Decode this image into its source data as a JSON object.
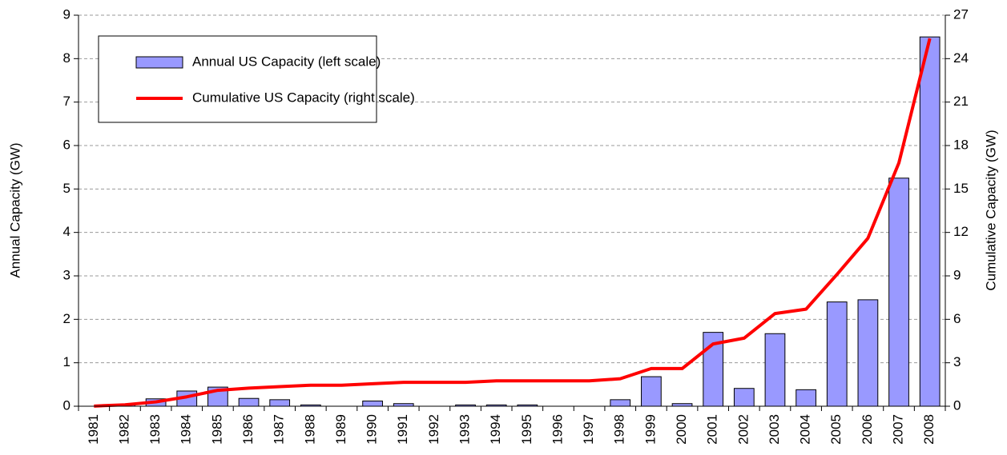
{
  "chart_data": {
    "type": "bar_line",
    "categories": [
      "1981",
      "1982",
      "1983",
      "1984",
      "1985",
      "1986",
      "1987",
      "1988",
      "1989",
      "1990",
      "1991",
      "1992",
      "1993",
      "1994",
      "1995",
      "1996",
      "1997",
      "1998",
      "1999",
      "2000",
      "2001",
      "2002",
      "2003",
      "2004",
      "2005",
      "2006",
      "2007",
      "2008"
    ],
    "series": [
      {
        "name": "Annual US Capacity (left scale)",
        "type": "bar",
        "color": "#9999ff",
        "values": [
          0.0,
          0.04,
          0.17,
          0.35,
          0.44,
          0.18,
          0.15,
          0.03,
          0.0,
          0.12,
          0.06,
          0.0,
          0.03,
          0.03,
          0.03,
          0.0,
          0.0,
          0.15,
          0.68,
          0.06,
          1.7,
          0.41,
          1.67,
          0.38,
          2.4,
          2.45,
          5.25,
          8.5
        ]
      },
      {
        "name": "Cumulative US Capacity (right scale)",
        "type": "line",
        "axis": "y2",
        "color": "#ff0000",
        "values": [
          0.01,
          0.1,
          0.3,
          0.65,
          1.1,
          1.25,
          1.35,
          1.45,
          1.45,
          1.55,
          1.65,
          1.65,
          1.65,
          1.75,
          1.75,
          1.75,
          1.75,
          1.9,
          2.6,
          2.6,
          4.3,
          4.7,
          6.4,
          6.7,
          9.1,
          11.6,
          16.8,
          25.4
        ]
      }
    ],
    "ylabel": "Annual Capacity (GW)",
    "y2label": "Cumulative Capacity (GW)",
    "ylim": [
      0,
      9
    ],
    "yticks": [
      0,
      1,
      2,
      3,
      4,
      5,
      6,
      7,
      8,
      9
    ],
    "y2lim": [
      0,
      27
    ],
    "y2ticks": [
      0,
      3,
      6,
      9,
      12,
      15,
      18,
      21,
      24,
      27
    ],
    "grid": true,
    "legend": "upper left"
  }
}
